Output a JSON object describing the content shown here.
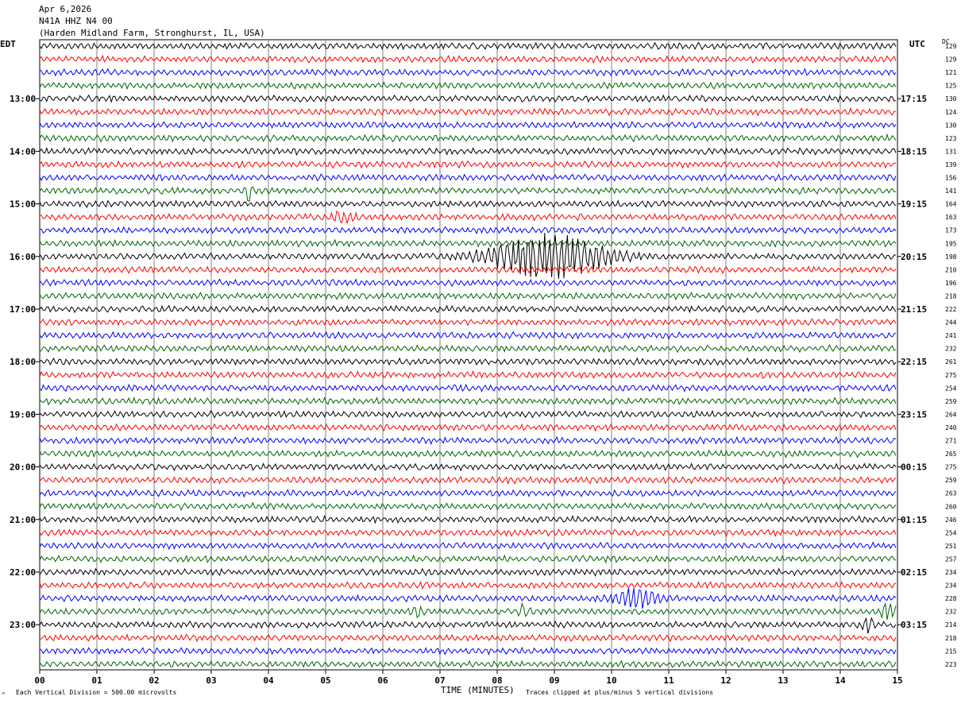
{
  "header": {
    "date": "Apr 6,2026",
    "station": "N41A HHZ N4 00",
    "location": "(Harden Midland Farm, Stronghurst, IL, USA)"
  },
  "left_axis_title": "EDT",
  "right_axis_title": "UTC",
  "dc_title": "DC",
  "footer": {
    "scale_note": "Each Vertical Division =  500.00 microvolts",
    "xlabel": "TIME (MINUTES)",
    "clip_note": "Traces clipped at plus/minus 5 vertical divisions",
    "corner_mark": "^"
  },
  "colors": {
    "trace_cycle": [
      "#000000",
      "#ff0000",
      "#0000ff",
      "#006400"
    ],
    "grid": "#808080"
  },
  "chart_data": {
    "type": "line",
    "title": "",
    "xlabel": "TIME (MINUTES)",
    "ylabel": "",
    "xlim": [
      0,
      15
    ],
    "x_ticks": [
      "00",
      "01",
      "02",
      "03",
      "04",
      "05",
      "06",
      "07",
      "08",
      "09",
      "10",
      "11",
      "12",
      "13",
      "14",
      "15"
    ],
    "trace_minutes_per_line": 15,
    "trace_count": 48,
    "left_time_labels": [
      {
        "row": 4,
        "label": "13:00"
      },
      {
        "row": 8,
        "label": "14:00"
      },
      {
        "row": 12,
        "label": "15:00"
      },
      {
        "row": 16,
        "label": "16:00"
      },
      {
        "row": 20,
        "label": "17:00"
      },
      {
        "row": 24,
        "label": "18:00"
      },
      {
        "row": 28,
        "label": "19:00"
      },
      {
        "row": 32,
        "label": "20:00"
      },
      {
        "row": 36,
        "label": "21:00"
      },
      {
        "row": 40,
        "label": "22:00"
      },
      {
        "row": 44,
        "label": "23:00"
      }
    ],
    "right_time_labels": [
      {
        "row": 4,
        "label": "17:15"
      },
      {
        "row": 8,
        "label": "18:15"
      },
      {
        "row": 12,
        "label": "19:15"
      },
      {
        "row": 16,
        "label": "20:15"
      },
      {
        "row": 20,
        "label": "21:15"
      },
      {
        "row": 24,
        "label": "22:15"
      },
      {
        "row": 28,
        "label": "23:15"
      },
      {
        "row": 32,
        "label": "00:15"
      },
      {
        "row": 36,
        "label": "01:15"
      },
      {
        "row": 40,
        "label": "02:15"
      },
      {
        "row": 44,
        "label": "03:15"
      }
    ],
    "dc_offsets": [
      "129",
      "129",
      "121",
      "125",
      "130",
      "124",
      "130",
      "123",
      "131",
      "139",
      "156",
      "141",
      "164",
      "163",
      "173",
      "195",
      "198",
      "210",
      "196",
      "218",
      "222",
      "244",
      "241",
      "232",
      "261",
      "275",
      "254",
      "259",
      "264",
      "240",
      "271",
      "265",
      "275",
      "259",
      "263",
      "260",
      "246",
      "254",
      "251",
      "257",
      "234",
      "234",
      "228",
      "232",
      "214",
      "218",
      "215",
      "223"
    ],
    "events": [
      {
        "row": 11,
        "minute": 3.65,
        "amplitude": 14,
        "duration_min": 0.12
      },
      {
        "row": 13,
        "minute": 5.3,
        "amplitude": 6,
        "duration_min": 0.4
      },
      {
        "row": 16,
        "minute": 8.9,
        "amplitude": 26,
        "duration_min": 2.2
      },
      {
        "row": 42,
        "minute": 10.45,
        "amplitude": 11,
        "duration_min": 0.8
      },
      {
        "row": 43,
        "minute": 6.6,
        "amplitude": 6,
        "duration_min": 0.15
      },
      {
        "row": 43,
        "minute": 8.45,
        "amplitude": 7,
        "duration_min": 0.15
      },
      {
        "row": 43,
        "minute": 14.85,
        "amplitude": 8,
        "duration_min": 0.3
      },
      {
        "row": 44,
        "minute": 14.5,
        "amplitude": 8,
        "duration_min": 0.2
      }
    ]
  }
}
